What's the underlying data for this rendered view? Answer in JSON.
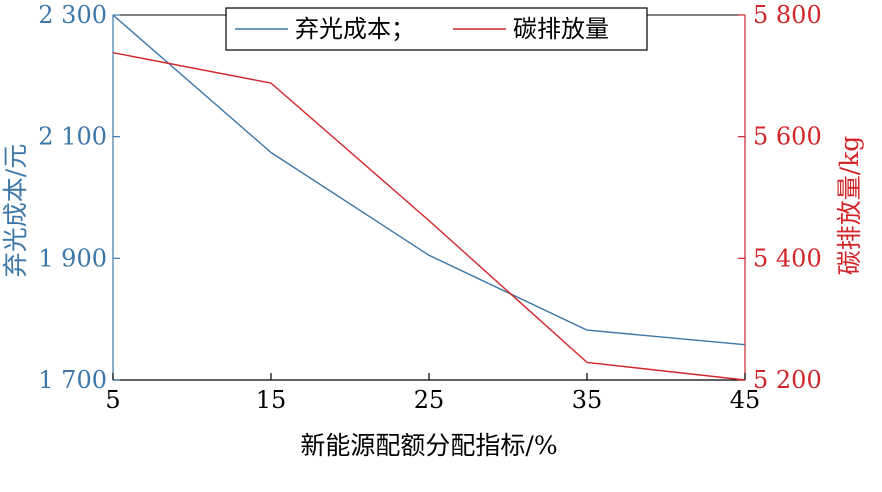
{
  "chart_data": {
    "type": "line",
    "x": [
      5,
      15,
      25,
      35,
      45
    ],
    "xlabel": "新能源配额分配指标/%",
    "x_ticks": [
      "5",
      "15",
      "25",
      "35",
      "45"
    ],
    "xlim": [
      5,
      45
    ],
    "left_axis": {
      "label": "弃光成本/元",
      "ylim": [
        1700,
        2300
      ],
      "ticks": [
        1700,
        1900,
        2100,
        2300
      ],
      "tick_labels": [
        "1 700",
        "1 900",
        "2 100",
        "2 300"
      ],
      "color": "#3d77a8"
    },
    "right_axis": {
      "label": "碳排放量/kg",
      "ylim": [
        5200,
        5800
      ],
      "ticks": [
        5200,
        5400,
        5600,
        5800
      ],
      "tick_labels": [
        "5 200",
        "5 400",
        "5 600",
        "5 800"
      ],
      "color": "#d1262a"
    },
    "series": [
      {
        "name": "弃光成本；",
        "axis": "left",
        "color": "#3d77a8",
        "values": [
          2300,
          2074,
          1905,
          1782,
          1758
        ]
      },
      {
        "name": "碳排放量",
        "axis": "right",
        "color": "#d1262a",
        "values": [
          5738,
          5688,
          5462,
          5229,
          5200
        ]
      }
    ],
    "legend": "top-center",
    "grid": false
  }
}
